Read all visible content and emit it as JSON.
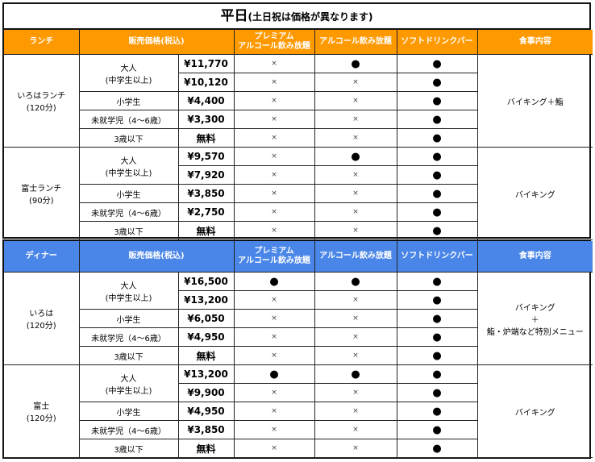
{
  "title": {
    "main": "平日",
    "note": "(土日祝は価格が異なります)"
  },
  "headers": {
    "price": "販売価格(税込)",
    "premium": "プレミアム\nアルコール飲み放題",
    "alcohol": "アルコール飲み放題",
    "soft": "ソフトドリンクバー",
    "meal": "食事内容"
  },
  "colors": {
    "lunch": "#ff9900",
    "dinner": "#4a86e8"
  },
  "symbols": {
    "yes": "●",
    "no": "×"
  },
  "sections": [
    {
      "name": "ランチ",
      "color": "#ff9900",
      "plans": [
        {
          "name": "いろはランチ\n(120分)",
          "meal": "バイキング＋鮨",
          "rows": [
            {
              "cat": "大人\n(中学生以上)",
              "price": "¥11,770",
              "p": "×",
              "a": "●",
              "s": "●"
            },
            {
              "price": "¥10,120",
              "p": "×",
              "a": "×",
              "s": "●"
            },
            {
              "cat": "小学生",
              "price": "¥4,400",
              "p": "×",
              "a": "×",
              "s": "●"
            },
            {
              "cat": "未就学児（4～6歳）",
              "price": "¥3,300",
              "p": "×",
              "a": "×",
              "s": "●"
            },
            {
              "cat": "3歳以下",
              "price": "無料",
              "p": "×",
              "a": "×",
              "s": "●"
            }
          ]
        },
        {
          "name": "富士ランチ\n(90分)",
          "meal": "バイキング",
          "rows": [
            {
              "cat": "大人\n(中学生以上)",
              "price": "¥9,570",
              "p": "×",
              "a": "●",
              "s": "●"
            },
            {
              "price": "¥7,920",
              "p": "×",
              "a": "×",
              "s": "●"
            },
            {
              "cat": "小学生",
              "price": "¥3,850",
              "p": "×",
              "a": "×",
              "s": "●"
            },
            {
              "cat": "未就学児（4～6歳）",
              "price": "¥2,750",
              "p": "×",
              "a": "×",
              "s": "●"
            },
            {
              "cat": "3歳以下",
              "price": "無料",
              "p": "×",
              "a": "×",
              "s": "●"
            }
          ]
        }
      ]
    },
    {
      "name": "ディナー",
      "color": "#4a86e8",
      "plans": [
        {
          "name": "いろは\n(120分)",
          "meal": "バイキング\n＋\n鮨・炉端など特別メニュー",
          "rows": [
            {
              "cat": "大人\n(中学生以上)",
              "price": "¥16,500",
              "p": "●",
              "a": "●",
              "s": "●"
            },
            {
              "price": "¥13,200",
              "p": "×",
              "a": "×",
              "s": "●"
            },
            {
              "cat": "小学生",
              "price": "¥6,050",
              "p": "×",
              "a": "×",
              "s": "●"
            },
            {
              "cat": "未就学児（4～6歳）",
              "price": "¥4,950",
              "p": "×",
              "a": "×",
              "s": "●"
            },
            {
              "cat": "3歳以下",
              "price": "無料",
              "p": "×",
              "a": "×",
              "s": "●"
            }
          ]
        },
        {
          "name": "富士\n(120分)",
          "meal": "バイキング",
          "rows": [
            {
              "cat": "大人\n(中学生以上)",
              "price": "¥13,200",
              "p": "●",
              "a": "●",
              "s": "●"
            },
            {
              "price": "¥9,900",
              "p": "×",
              "a": "×",
              "s": "●"
            },
            {
              "cat": "小学生",
              "price": "¥4,950",
              "p": "×",
              "a": "×",
              "s": "●"
            },
            {
              "cat": "未就学児（4～6歳）",
              "price": "¥3,850",
              "p": "×",
              "a": "×",
              "s": "●"
            },
            {
              "cat": "3歳以下",
              "price": "無料",
              "p": "×",
              "a": "×",
              "s": "●"
            }
          ]
        }
      ]
    }
  ]
}
